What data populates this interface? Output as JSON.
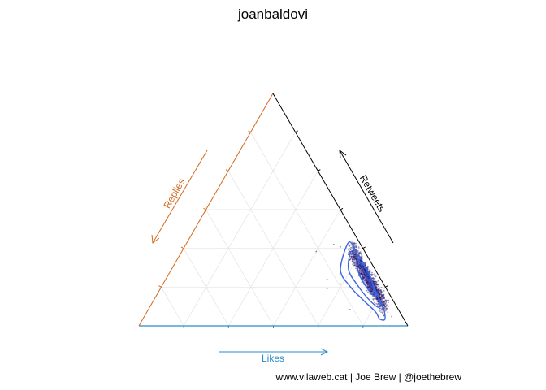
{
  "chart_data": {
    "type": "ternary-scatter",
    "title": "joanbaldovi",
    "axes": {
      "likes": {
        "label": "Likes",
        "color": "#2b8cc4"
      },
      "replies": {
        "label": "Replies",
        "color": "#d2691e"
      },
      "retweets": {
        "label": "Retweets",
        "color": "#000000"
      }
    },
    "grid": true,
    "grid_steps": 6,
    "point_color": "#2a1a6e",
    "contour_color": "#3a66e0",
    "contours": [
      [
        [
          0.6,
          0.05,
          0.35
        ],
        [
          0.63,
          0.13,
          0.24
        ],
        [
          0.7,
          0.13,
          0.17
        ],
        [
          0.78,
          0.11,
          0.11
        ],
        [
          0.85,
          0.09,
          0.06
        ],
        [
          0.88,
          0.09,
          0.03
        ],
        [
          0.9,
          0.07,
          0.03
        ],
        [
          0.86,
          0.05,
          0.09
        ],
        [
          0.77,
          0.05,
          0.18
        ],
        [
          0.68,
          0.04,
          0.28
        ],
        [
          0.62,
          0.03,
          0.35
        ]
      ],
      [
        [
          0.63,
          0.06,
          0.31
        ],
        [
          0.66,
          0.1,
          0.24
        ],
        [
          0.72,
          0.1,
          0.18
        ],
        [
          0.79,
          0.09,
          0.12
        ],
        [
          0.85,
          0.07,
          0.08
        ],
        [
          0.84,
          0.05,
          0.11
        ],
        [
          0.77,
          0.04,
          0.19
        ],
        [
          0.69,
          0.03,
          0.28
        ],
        [
          0.64,
          0.04,
          0.32
        ]
      ],
      [
        [
          0.67,
          0.05,
          0.28
        ],
        [
          0.71,
          0.07,
          0.22
        ],
        [
          0.77,
          0.07,
          0.16
        ],
        [
          0.81,
          0.06,
          0.13
        ],
        [
          0.78,
          0.04,
          0.18
        ],
        [
          0.72,
          0.03,
          0.25
        ]
      ]
    ],
    "point_cloud": {
      "count": 1200,
      "likes_range": [
        0.6,
        0.9
      ],
      "replies_mean": 0.045,
      "replies_spread": 0.025
    },
    "outliers": [
      [
        0.6,
        0.2,
        0.2
      ],
      [
        0.5,
        0.18,
        0.32
      ],
      [
        0.55,
        0.1,
        0.35
      ],
      [
        0.66,
        0.16,
        0.18
      ],
      [
        0.75,
        0.18,
        0.07
      ],
      [
        0.62,
        0.22,
        0.16
      ],
      [
        0.92,
        0.04,
        0.04
      ],
      [
        0.58,
        0.08,
        0.34
      ]
    ]
  },
  "caption": "www.vilaweb.cat | Joe Brew | @joethebrew"
}
